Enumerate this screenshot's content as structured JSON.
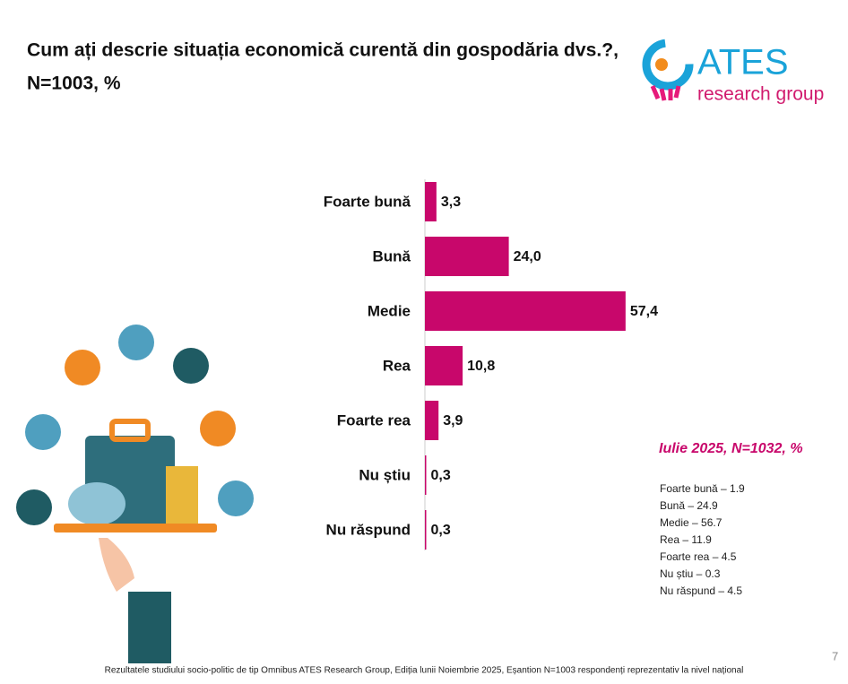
{
  "chart_data": {
    "type": "bar",
    "orientation": "horizontal",
    "title": "Cum ați descrie situația economică curentă din gospodăria dvs.?,",
    "subtitle": "N=1003, %",
    "categories": [
      "Foarte bună",
      "Bună",
      "Medie",
      "Rea",
      "Foarte rea",
      "Nu știu",
      "Nu răspund"
    ],
    "values": [
      3.3,
      24.0,
      57.4,
      10.8,
      3.9,
      0.3,
      0.3
    ],
    "value_labels": [
      "3,3",
      "24,0",
      "57,4",
      "10,8",
      "3,9",
      "0,3",
      "0,3"
    ],
    "color": "#c8076b"
  },
  "logo": {
    "name": "ATES",
    "tagline": "research group"
  },
  "comparison": {
    "title": "Iulie 2025, N=1032, %",
    "items": [
      "Foarte bună – 1.9",
      "Bună – 24.9",
      "Medie – 56.7",
      "Rea – 11.9",
      "Foarte rea – 4.5",
      "Nu știu – 0.3",
      "Nu răspund – 4.5"
    ]
  },
  "footer": "Rezultatele studiului socio-politic de tip Omnibus ATES Research Group, Ediția lunii Noiembrie 2025, Eșantion N=1003 respondenți reprezentativ la nivel național",
  "page_number": "7"
}
